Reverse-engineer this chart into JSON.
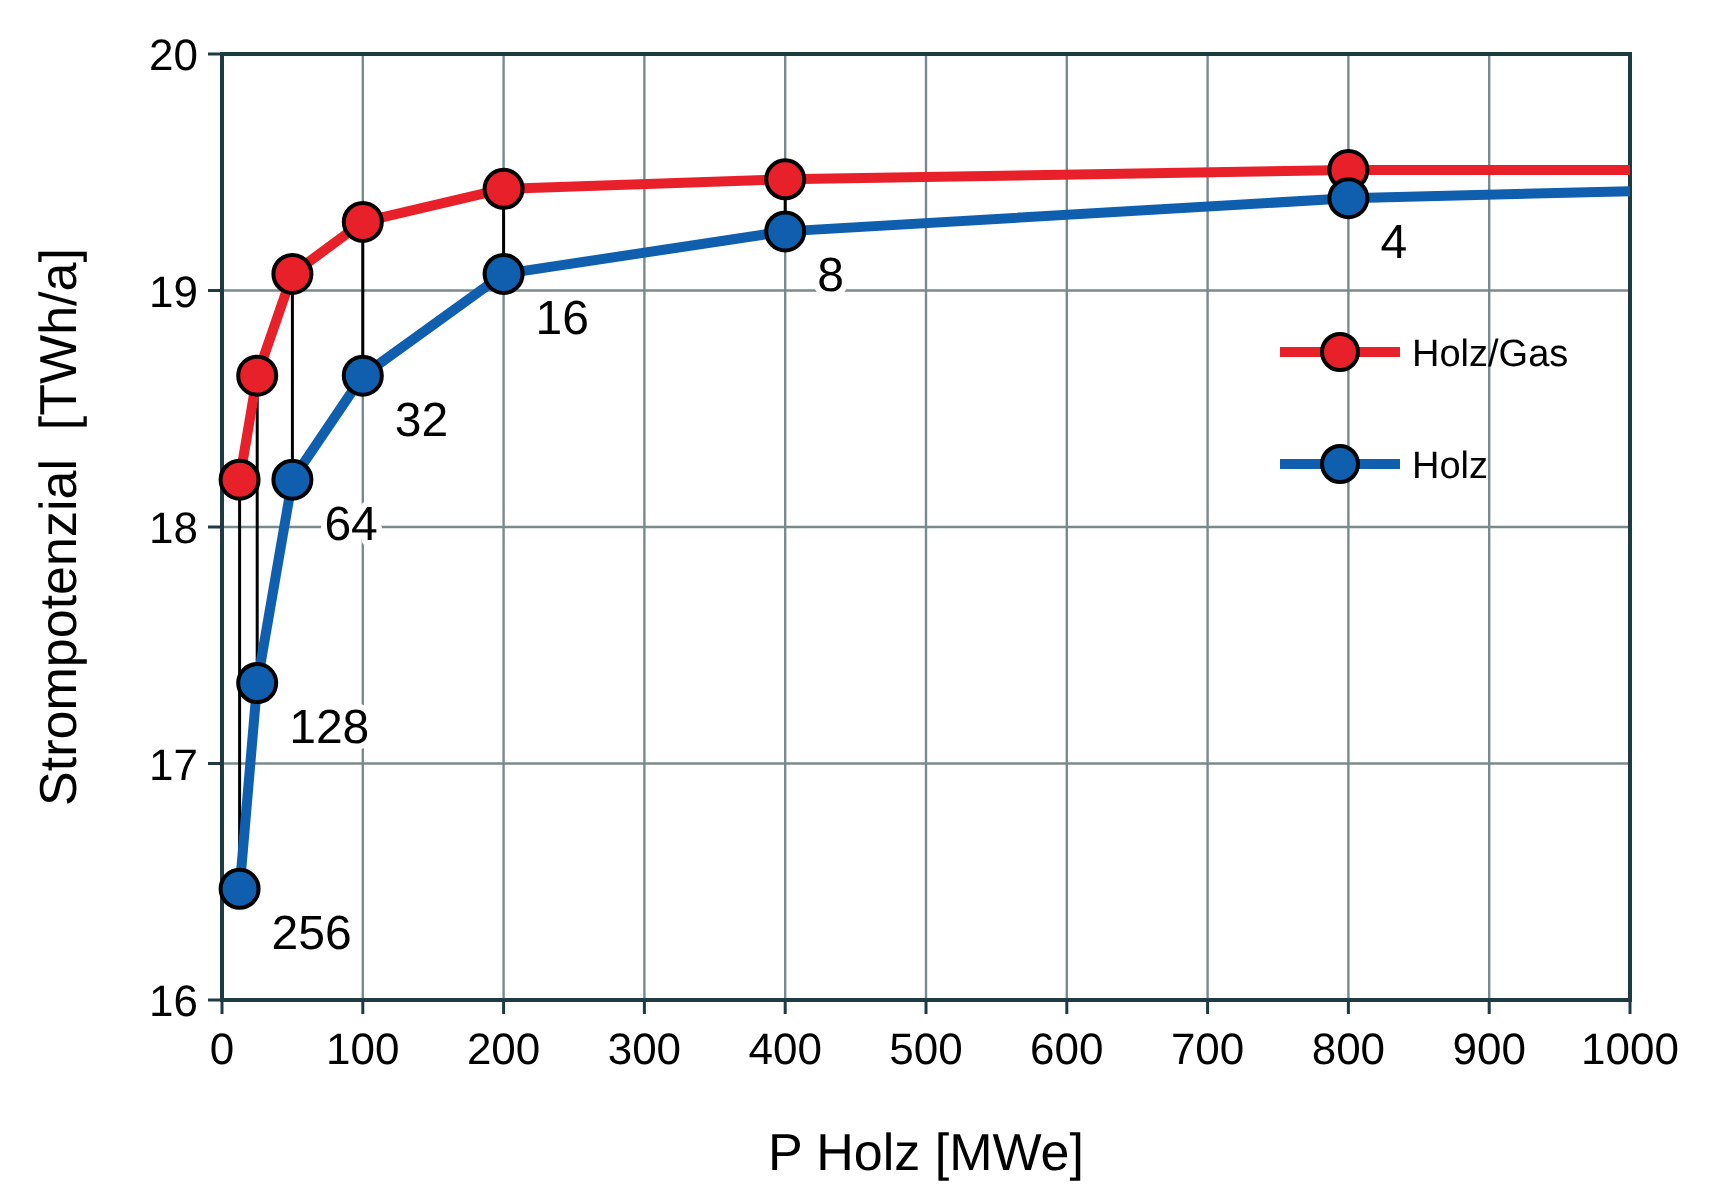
{
  "chart_data": {
    "type": "line",
    "xlabel": "P Holz [MWe]",
    "ylabel": "Strompotenzial  [TWh/a]",
    "xlim": [
      0,
      1000
    ],
    "xticks": [
      0,
      100,
      200,
      300,
      400,
      500,
      600,
      700,
      800,
      900,
      1000
    ],
    "ylim": [
      16,
      20
    ],
    "yticks": [
      16,
      17,
      18,
      19,
      20
    ],
    "grid": true,
    "legend": "right",
    "marker": "circle",
    "line_style": "solid",
    "series": [
      {
        "name": "Holz/Gas",
        "color": "#e8202a",
        "x": [
          12.5,
          25,
          50,
          100,
          200,
          400,
          800,
          1000
        ],
        "values": [
          18.2,
          18.64,
          19.07,
          19.29,
          19.43,
          19.47,
          19.51,
          19.51
        ]
      },
      {
        "name": "Holz",
        "color": "#0f5fae",
        "x": [
          12.5,
          25,
          50,
          100,
          200,
          400,
          800,
          1000
        ],
        "values": [
          16.47,
          17.34,
          18.2,
          18.64,
          19.07,
          19.25,
          19.39,
          19.42
        ]
      }
    ],
    "annotations": [
      {
        "text": "256",
        "x": 12.5,
        "y": 16.47
      },
      {
        "text": "128",
        "x": 25,
        "y": 17.34
      },
      {
        "text": "64",
        "x": 50,
        "y": 18.2
      },
      {
        "text": "32",
        "x": 100,
        "y": 18.64
      },
      {
        "text": "16",
        "x": 200,
        "y": 19.07
      },
      {
        "text": "8",
        "x": 400,
        "y": 19.25
      },
      {
        "text": "4",
        "x": 800,
        "y": 19.39
      }
    ]
  }
}
